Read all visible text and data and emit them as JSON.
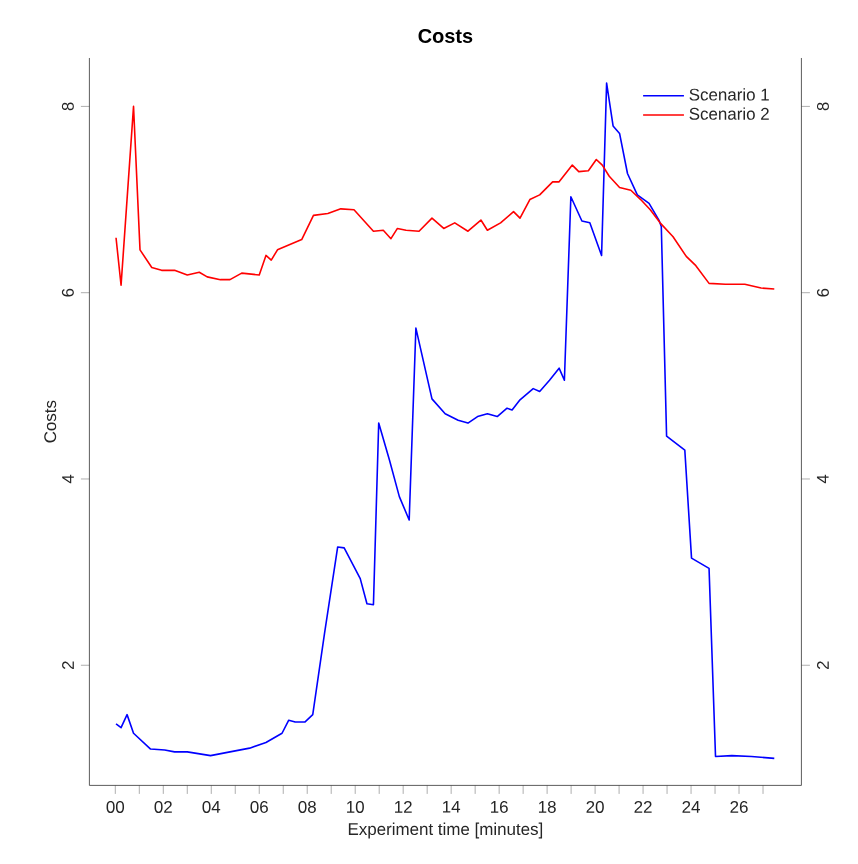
{
  "chart_data": {
    "type": "line",
    "title": "Costs",
    "xlabel": "Experiment time [minutes]",
    "ylabel": "Costs",
    "xlim": [
      -1.08,
      28.6
    ],
    "ylim": [
      0.71,
      8.52
    ],
    "y2lim": [
      0.71,
      8.52
    ],
    "xticks": [
      {
        "value": 0,
        "label": "00"
      },
      {
        "value": 1,
        "label": null
      },
      {
        "value": 2,
        "label": "02"
      },
      {
        "value": 3,
        "label": null
      },
      {
        "value": 4,
        "label": "04"
      },
      {
        "value": 5,
        "label": null
      },
      {
        "value": 6,
        "label": "06"
      },
      {
        "value": 7,
        "label": null
      },
      {
        "value": 8,
        "label": "08"
      },
      {
        "value": 9,
        "label": null
      },
      {
        "value": 10,
        "label": "10"
      },
      {
        "value": 11,
        "label": null
      },
      {
        "value": 12,
        "label": "12"
      },
      {
        "value": 13,
        "label": null
      },
      {
        "value": 14,
        "label": "14"
      },
      {
        "value": 15,
        "label": null
      },
      {
        "value": 16,
        "label": "16"
      },
      {
        "value": 17,
        "label": null
      },
      {
        "value": 18,
        "label": "18"
      },
      {
        "value": 19,
        "label": null
      },
      {
        "value": 20,
        "label": "20"
      },
      {
        "value": 21,
        "label": null
      },
      {
        "value": 22,
        "label": "22"
      },
      {
        "value": 23,
        "label": null
      },
      {
        "value": 24,
        "label": "24"
      },
      {
        "value": 25,
        "label": null
      },
      {
        "value": 26,
        "label": "26"
      },
      {
        "value": 27,
        "label": null
      }
    ],
    "yticks": [
      2,
      4,
      6,
      8
    ],
    "y2ticks": [
      2,
      4,
      6,
      8
    ],
    "legend": "top right",
    "grid": false,
    "marker": "none",
    "line_style": "solid",
    "series": [
      {
        "name": "Scenario 1",
        "color": "#0000ff",
        "x": [
          0.03,
          0.24,
          0.49,
          0.76,
          1.47,
          2.06,
          2.47,
          3.0,
          3.97,
          4.78,
          5.6,
          6.28,
          6.95,
          7.23,
          7.5,
          7.9,
          8.23,
          8.72,
          9.27,
          9.54,
          10.21,
          10.49,
          10.76,
          10.98,
          11.43,
          11.84,
          12.25,
          12.53,
          13.2,
          13.75,
          14.29,
          14.7,
          15.1,
          15.51,
          15.92,
          16.33,
          16.54,
          16.87,
          17.42,
          17.69,
          18.1,
          18.5,
          18.72,
          18.99,
          19.45,
          19.78,
          20.27,
          20.48,
          20.75,
          21.02,
          21.35,
          21.76,
          22.25,
          22.66,
          22.76,
          22.98,
          23.74,
          24.02,
          24.75,
          25.02,
          25.7,
          26.52,
          27.47
        ],
        "values": [
          1.37,
          1.33,
          1.47,
          1.27,
          1.1,
          1.09,
          1.07,
          1.07,
          1.03,
          1.07,
          1.11,
          1.17,
          1.27,
          1.41,
          1.39,
          1.39,
          1.47,
          2.34,
          3.27,
          3.26,
          2.93,
          2.66,
          2.65,
          4.6,
          4.2,
          3.81,
          3.56,
          5.62,
          4.86,
          4.7,
          4.63,
          4.6,
          4.67,
          4.7,
          4.67,
          4.76,
          4.74,
          4.85,
          4.97,
          4.94,
          5.06,
          5.19,
          5.06,
          7.03,
          6.77,
          6.75,
          6.4,
          8.25,
          7.79,
          7.71,
          7.28,
          7.05,
          6.96,
          6.78,
          6.71,
          4.46,
          4.31,
          3.15,
          3.04,
          1.02,
          1.03,
          1.02,
          1.0
        ]
      },
      {
        "name": "Scenario 2",
        "color": "#ff0000",
        "x": [
          0.03,
          0.24,
          0.76,
          1.03,
          1.52,
          1.93,
          2.47,
          3.0,
          3.5,
          3.83,
          4.38,
          4.78,
          5.27,
          6.0,
          6.28,
          6.5,
          6.76,
          7.77,
          8.26,
          8.86,
          9.4,
          9.95,
          10.27,
          10.76,
          11.17,
          11.49,
          11.76,
          12.12,
          12.66,
          13.2,
          13.69,
          14.15,
          14.7,
          15.24,
          15.51,
          16.06,
          16.6,
          16.87,
          17.28,
          17.69,
          18.23,
          18.5,
          19.05,
          19.32,
          19.72,
          20.05,
          20.3,
          20.59,
          21.02,
          21.49,
          21.9,
          22.3,
          22.71,
          23.25,
          23.8,
          24.2,
          24.75,
          25.43,
          26.24,
          26.92,
          27.47
        ],
        "values": [
          6.59,
          6.08,
          8.0,
          6.46,
          6.27,
          6.24,
          6.24,
          6.19,
          6.22,
          6.17,
          6.14,
          6.14,
          6.21,
          6.19,
          6.4,
          6.35,
          6.46,
          6.57,
          6.83,
          6.85,
          6.9,
          6.89,
          6.8,
          6.66,
          6.67,
          6.58,
          6.69,
          6.67,
          6.66,
          6.8,
          6.69,
          6.75,
          6.66,
          6.78,
          6.67,
          6.75,
          6.87,
          6.8,
          7.0,
          7.05,
          7.19,
          7.19,
          7.37,
          7.3,
          7.31,
          7.43,
          7.37,
          7.25,
          7.13,
          7.1,
          7.0,
          6.89,
          6.75,
          6.6,
          6.39,
          6.29,
          6.1,
          6.09,
          6.09,
          6.05,
          6.04
        ]
      }
    ]
  }
}
